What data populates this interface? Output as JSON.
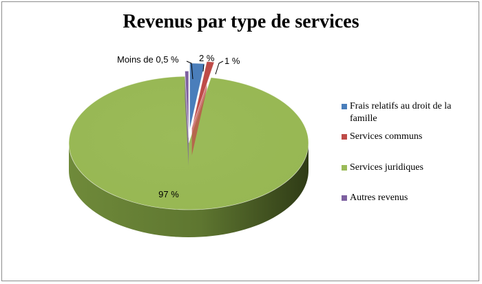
{
  "chart_data": {
    "type": "pie",
    "title": "Revenus par type de services",
    "categories": [
      "Frais relatifs au droit de la famille",
      "Services communs",
      "Services juridiques",
      "Autres revenus"
    ],
    "values": [
      2,
      1,
      97,
      0.5
    ],
    "data_labels": [
      "2 %",
      "1 %",
      "97 %",
      "Moins de 0,5 %"
    ],
    "colors": [
      "#4a7ebb",
      "#be4b48",
      "#9bbb59",
      "#7d60a0"
    ],
    "legend_position": "right",
    "style": "3d-exploded"
  }
}
